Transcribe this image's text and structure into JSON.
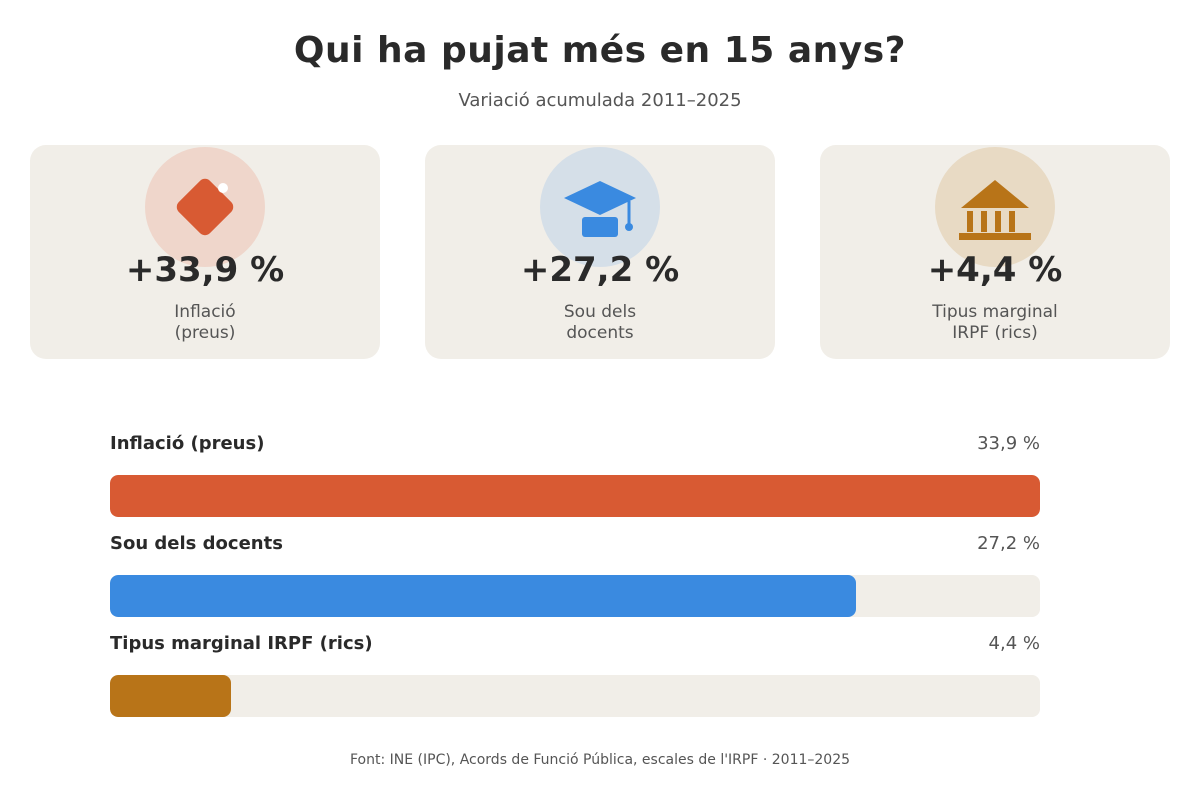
{
  "title": "Qui ha pujat més en 15 anys?",
  "subtitle": "Variació acumulada 2011–2025",
  "source": "Font: INE (IPC), Acords de Funció Pública, escales de l'IRPF · 2011–2025",
  "colors": {
    "inflation": "#d85a33",
    "teachers": "#3a8ae0",
    "irpf": "#b87418",
    "track": "#f1eee8"
  },
  "cards": [
    {
      "value": "+33,9 %",
      "label_line1": "Inflació",
      "label_line2": "(preus)",
      "icon": "price-tag-icon"
    },
    {
      "value": "+27,2 %",
      "label_line1": "Sou dels",
      "label_line2": "docents",
      "icon": "graduation-cap-icon"
    },
    {
      "value": "+4,4 %",
      "label_line1": "Tipus marginal",
      "label_line2": "IRPF (rics)",
      "icon": "bank-building-icon"
    }
  ],
  "chart_data": {
    "type": "bar",
    "orientation": "horizontal",
    "categories": [
      "Inflació (preus)",
      "Sou dels docents",
      "Tipus marginal IRPF (rics)"
    ],
    "values": [
      33.9,
      27.2,
      4.4
    ],
    "value_labels": [
      "33,9 %",
      "27,2 %",
      "4,4 %"
    ],
    "unit": "%",
    "xlim": [
      0,
      33.9
    ],
    "grid": false
  }
}
